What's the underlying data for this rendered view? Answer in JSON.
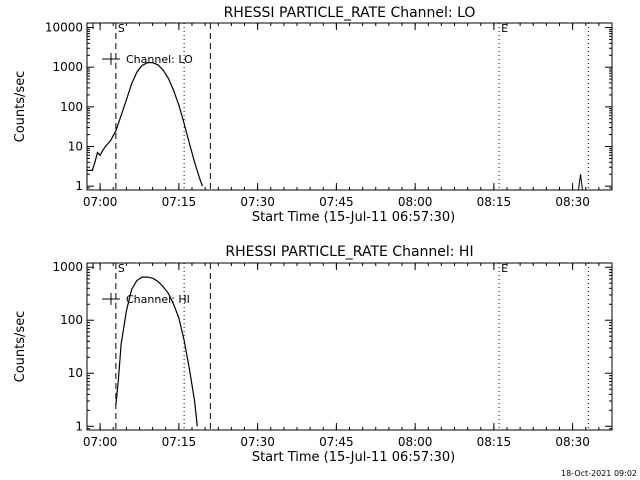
{
  "footer": {
    "timestamp": "18-Oct-2021 09:02"
  },
  "chart_data": [
    {
      "type": "line",
      "title": "RHESSI PARTICLE_RATE Channel: LO",
      "xlabel": "Start Time (15-Jul-11 06:57:30)",
      "ylabel": "Counts/sec",
      "y_scale": "log",
      "xlim": [
        "06:57:30",
        "08:37:30"
      ],
      "ylim": [
        0.8,
        13000
      ],
      "x_ticks": [
        "07:00",
        "07:15",
        "07:30",
        "07:45",
        "08:00",
        "08:15",
        "08:30"
      ],
      "y_ticks": [
        "1",
        "10",
        "100",
        "1000",
        "10000"
      ],
      "legend": {
        "position": "top-left",
        "label": "Channel: LO"
      },
      "markers": [
        {
          "label": "S",
          "time": "07:03",
          "style": "dashed"
        },
        {
          "label": "",
          "time": "07:21",
          "style": "dashed"
        },
        {
          "label": "",
          "time": "07:16",
          "style": "dotted"
        },
        {
          "label": "E",
          "time": "08:16",
          "style": "dotted"
        },
        {
          "label": "",
          "time": "08:33",
          "style": "dotted"
        }
      ],
      "series": [
        {
          "name": "Channel: LO",
          "points": [
            [
              "06:57:30",
              2.5
            ],
            [
              "06:58:30",
              2.5
            ],
            [
              "06:59:00",
              4
            ],
            [
              "06:59:30",
              7
            ],
            [
              "07:00:00",
              6
            ],
            [
              "07:00:30",
              8
            ],
            [
              "07:01:00",
              10
            ],
            [
              "07:02:00",
              14
            ],
            [
              "07:03:00",
              25
            ],
            [
              "07:04:00",
              60
            ],
            [
              "07:05:00",
              150
            ],
            [
              "07:06:00",
              380
            ],
            [
              "07:07:00",
              750
            ],
            [
              "07:08:00",
              1100
            ],
            [
              "07:09:00",
              1300
            ],
            [
              "07:10:00",
              1300
            ],
            [
              "07:11:00",
              1150
            ],
            [
              "07:12:00",
              850
            ],
            [
              "07:13:00",
              520
            ],
            [
              "07:14:00",
              260
            ],
            [
              "07:15:00",
              110
            ],
            [
              "07:16:00",
              38
            ],
            [
              "07:17:00",
              12
            ],
            [
              "07:18:00",
              4
            ],
            [
              "07:19:00",
              1.5
            ],
            [
              "07:19:30",
              1
            ]
          ],
          "spike": {
            "time": "08:31:30",
            "value": 2
          }
        }
      ]
    },
    {
      "type": "line",
      "title": "RHESSI PARTICLE_RATE Channel: HI",
      "xlabel": "Start Time (15-Jul-11 06:57:30)",
      "ylabel": "Counts/sec",
      "y_scale": "log",
      "xlim": [
        "06:57:30",
        "08:37:30"
      ],
      "ylim": [
        0.85,
        1200
      ],
      "x_ticks": [
        "07:00",
        "07:15",
        "07:30",
        "07:45",
        "08:00",
        "08:15",
        "08:30"
      ],
      "y_ticks": [
        "1",
        "10",
        "100",
        "1000"
      ],
      "legend": {
        "position": "top-left",
        "label": "Channel: HI"
      },
      "markers": [
        {
          "label": "S",
          "time": "07:03",
          "style": "dashed"
        },
        {
          "label": "",
          "time": "07:21",
          "style": "dashed"
        },
        {
          "label": "",
          "time": "07:16",
          "style": "dotted"
        },
        {
          "label": "E",
          "time": "08:16",
          "style": "dotted"
        },
        {
          "label": "",
          "time": "08:33",
          "style": "dotted"
        }
      ],
      "series": [
        {
          "name": "Channel: HI",
          "points": [
            [
              "07:03:00",
              2.5
            ],
            [
              "07:03:30",
              8
            ],
            [
              "07:04:00",
              35
            ],
            [
              "07:05:00",
              150
            ],
            [
              "07:06:00",
              380
            ],
            [
              "07:07:00",
              560
            ],
            [
              "07:08:00",
              650
            ],
            [
              "07:09:00",
              650
            ],
            [
              "07:10:00",
              620
            ],
            [
              "07:11:00",
              540
            ],
            [
              "07:12:00",
              430
            ],
            [
              "07:13:00",
              320
            ],
            [
              "07:14:00",
              200
            ],
            [
              "07:15:00",
              110
            ],
            [
              "07:16:00",
              42
            ],
            [
              "07:17:00",
              12
            ],
            [
              "07:18:00",
              3
            ],
            [
              "07:18:30",
              1
            ]
          ]
        }
      ]
    }
  ]
}
